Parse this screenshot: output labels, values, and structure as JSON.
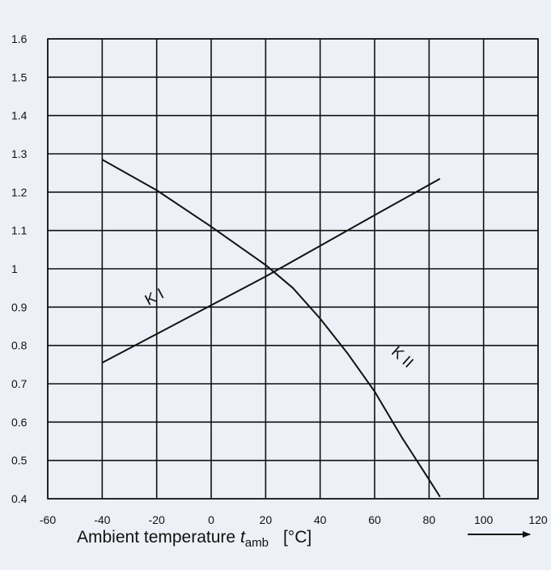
{
  "chart_data": {
    "type": "line",
    "title": "",
    "xlabel": {
      "main": "Ambient temperature ",
      "var": "t",
      "sub": "amb",
      "unit": "[°C]"
    },
    "ylabel": "",
    "xlim": [
      -60,
      120
    ],
    "ylim": [
      0.4,
      1.6
    ],
    "xticks": [
      "-60",
      "-40",
      "-20",
      "0",
      "20",
      "40",
      "60",
      "80",
      "100",
      "120"
    ],
    "yticks": [
      "0.4",
      "0.5",
      "0.6",
      "0.7",
      "0.8",
      "0.9",
      "1",
      "1.1",
      "1.2",
      "1.3",
      "1.4",
      "1.5",
      "1.6"
    ],
    "grid": true,
    "series": [
      {
        "name": "K I",
        "x": [
          -40,
          -20,
          0,
          20,
          40,
          60,
          84
        ],
        "y": [
          0.755,
          0.83,
          0.905,
          0.98,
          1.06,
          1.14,
          1.235
        ]
      },
      {
        "name": "K II",
        "x": [
          -40,
          -20,
          0,
          20,
          30,
          40,
          50,
          60,
          70,
          80,
          84
        ],
        "y": [
          1.285,
          1.205,
          1.11,
          1.01,
          0.95,
          0.87,
          0.78,
          0.68,
          0.56,
          0.45,
          0.405
        ]
      }
    ],
    "colors": {
      "line": "#111111",
      "background": "#edf0f6"
    }
  }
}
